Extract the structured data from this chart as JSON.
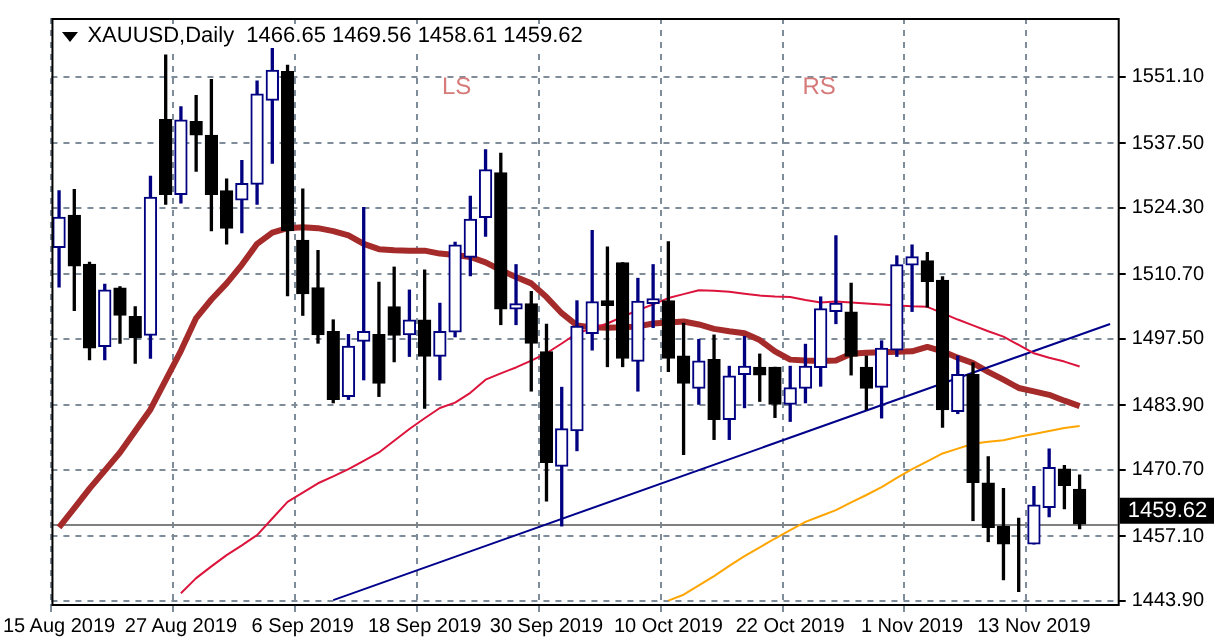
{
  "chart_data": {
    "type": "candlestick",
    "title": "XAUUSD,Daily  1466.65 1469.56 1458.61 1459.62",
    "categories": [
      "15 Aug 2019",
      null,
      null,
      null,
      null,
      null,
      null,
      null,
      "27 Aug 2019",
      null,
      null,
      null,
      null,
      null,
      null,
      null,
      "6 Sep 2019",
      null,
      null,
      null,
      null,
      null,
      null,
      null,
      "18 Sep 2019",
      null,
      null,
      null,
      null,
      null,
      null,
      null,
      "30 Sep 2019",
      null,
      null,
      null,
      null,
      null,
      null,
      null,
      "10 Oct 2019",
      null,
      null,
      null,
      null,
      null,
      null,
      null,
      "22 Oct 2019",
      null,
      null,
      null,
      null,
      null,
      null,
      null,
      "1 Nov 2019",
      null,
      null,
      null,
      null,
      null,
      null,
      null,
      "13 Nov 2019",
      null,
      null,
      null,
      null,
      null
    ],
    "ohlc": [
      [
        1516.2,
        1527.7,
        1508.1,
        1522.3
      ],
      [
        1522.7,
        1528.0,
        1503.3,
        1512.4
      ],
      [
        1512.7,
        1513.1,
        1493.2,
        1495.6
      ],
      [
        1495.9,
        1508.6,
        1493.2,
        1507.4
      ],
      [
        1507.8,
        1508.1,
        1496.6,
        1502.3
      ],
      [
        1502.0,
        1504.0,
        1492.5,
        1497.7
      ],
      [
        1498.2,
        1530.7,
        1493.5,
        1526.4
      ],
      [
        1542.3,
        1555.5,
        1525.0,
        1527.0
      ],
      [
        1527.0,
        1544.9,
        1525.3,
        1542.2
      ],
      [
        1541.9,
        1547.2,
        1531.8,
        1539.2
      ],
      [
        1539.1,
        1550.5,
        1519.6,
        1527.0
      ],
      [
        1527.7,
        1530.1,
        1516.9,
        1520.1
      ],
      [
        1525.9,
        1533.9,
        1519.2,
        1529.2
      ],
      [
        1529.1,
        1550.2,
        1525.0,
        1547.5
      ],
      [
        1546.3,
        1557.5,
        1533.4,
        1552.4
      ],
      [
        1552.1,
        1553.4,
        1506.3,
        1519.6
      ],
      [
        1517.6,
        1528.1,
        1502.3,
        1506.7
      ],
      [
        1507.9,
        1515.5,
        1496.6,
        1498.3
      ],
      [
        1498.9,
        1501.3,
        1484.4,
        1485.1
      ],
      [
        1485.7,
        1498.3,
        1485.1,
        1495.9
      ],
      [
        1497.0,
        1524.3,
        1489.1,
        1498.9
      ],
      [
        1498.3,
        1509.0,
        1485.7,
        1488.4
      ],
      [
        1504.0,
        1512.1,
        1492.8,
        1498.2
      ],
      [
        1498.3,
        1507.4,
        1493.9,
        1501.3
      ],
      [
        1501.3,
        1511.5,
        1483.3,
        1493.9
      ],
      [
        1493.9,
        1504.7,
        1489.1,
        1498.9
      ],
      [
        1498.9,
        1517.2,
        1497.9,
        1516.6
      ],
      [
        1514.2,
        1526.6,
        1510.4,
        1521.9
      ],
      [
        1522.3,
        1536.1,
        1518.5,
        1532.0
      ],
      [
        1531.4,
        1535.4,
        1500.4,
        1503.6
      ],
      [
        1503.6,
        1512.6,
        1500.4,
        1504.6
      ],
      [
        1504.6,
        1507.1,
        1486.8,
        1496.6
      ],
      [
        1494.8,
        1500.4,
        1464.3,
        1472.2
      ],
      [
        1471.4,
        1487.5,
        1459.2,
        1479.0
      ],
      [
        1478.7,
        1505.2,
        1474.6,
        1500.0
      ],
      [
        1498.6,
        1519.6,
        1495.2,
        1505.0
      ],
      [
        1505.2,
        1516.2,
        1491.8,
        1504.3
      ],
      [
        1513.0,
        1513.0,
        1491.8,
        1493.5
      ],
      [
        1492.9,
        1509.8,
        1486.8,
        1505.1
      ],
      [
        1504.7,
        1512.6,
        1499.8,
        1505.6
      ],
      [
        1505.2,
        1517.3,
        1490.8,
        1493.5
      ],
      [
        1493.9,
        1500.6,
        1473.8,
        1488.4
      ],
      [
        1487.4,
        1497.3,
        1484.1,
        1492.9
      ],
      [
        1493.2,
        1498.2,
        1476.9,
        1481.0
      ],
      [
        1481.0,
        1491.8,
        1476.9,
        1489.8
      ],
      [
        1490.2,
        1497.9,
        1483.4,
        1491.8
      ],
      [
        1491.6,
        1494.3,
        1484.7,
        1490.1
      ],
      [
        1491.6,
        1491.6,
        1481.4,
        1484.1
      ],
      [
        1484.1,
        1491.8,
        1480.6,
        1487.4
      ],
      [
        1487.4,
        1496.3,
        1484.4,
        1491.8
      ],
      [
        1491.6,
        1506.0,
        1487.8,
        1503.6
      ],
      [
        1503.1,
        1518.5,
        1500.6,
        1504.7
      ],
      [
        1502.9,
        1508.8,
        1490.1,
        1493.9
      ],
      [
        1491.6,
        1493.9,
        1483.0,
        1487.4
      ],
      [
        1487.6,
        1497.0,
        1481.3,
        1495.5
      ],
      [
        1495.2,
        1514.4,
        1493.9,
        1512.6
      ],
      [
        1512.6,
        1516.6,
        1503.1,
        1514.2
      ],
      [
        1513.4,
        1515.1,
        1504.0,
        1509.2
      ],
      [
        1509.4,
        1510.1,
        1479.4,
        1483.0
      ],
      [
        1482.6,
        1493.9,
        1482.2,
        1490.1
      ],
      [
        1490.1,
        1492.5,
        1460.3,
        1468.1
      ],
      [
        1467.9,
        1473.3,
        1456.0,
        1458.9
      ],
      [
        1459.1,
        1466.8,
        1448.2,
        1455.5
      ],
      [
        1456.0,
        1460.7,
        1445.8,
        1456.0
      ],
      [
        1455.5,
        1467.2,
        1455.5,
        1463.4
      ],
      [
        1463.0,
        1474.9,
        1461.1,
        1471.1
      ],
      [
        1470.8,
        1471.5,
        1462.7,
        1467.5
      ],
      [
        1466.65,
        1469.56,
        1458.61,
        1459.62
      ],
      null,
      null
    ],
    "colors": [
      "#000080",
      "#000000",
      "#000000",
      "#000080",
      "#000000",
      "#000000",
      "#000080",
      "#000000",
      "#000080",
      "#000000",
      "#000000",
      "#000000",
      "#000080",
      "#000080",
      "#000080",
      "#000000",
      "#000000",
      "#000000",
      "#000000",
      "#000080",
      "#000080",
      "#000000",
      "#000000",
      "#000080",
      "#000000",
      "#000080",
      "#000080",
      "#000080",
      "#000080",
      "#000000",
      "#000080",
      "#000000",
      "#000000",
      "#000080",
      "#000080",
      "#000080",
      "#000000",
      "#000000",
      "#000080",
      "#000080",
      "#000000",
      "#000000",
      "#000080",
      "#000000",
      "#000080",
      "#000080",
      "#000000",
      "#000000",
      "#000080",
      "#000080",
      "#000080",
      "#000080",
      "#000000",
      "#000000",
      "#000080",
      "#000080",
      "#000080",
      "#000000",
      "#000000",
      "#000080",
      "#000000",
      "#000000",
      "#000000",
      "#000000",
      "#000080",
      "#000080",
      "#000000",
      "#000000",
      null,
      null
    ],
    "series": [
      {
        "type": "line",
        "color": "#dc143c",
        "values": [
          null,
          null,
          null,
          null,
          null,
          null,
          null,
          null,
          1445.4,
          1448.5,
          1450.9,
          1453.2,
          1455.2,
          1457.3,
          1460.7,
          1464.1,
          1466.0,
          1467.9,
          1469.3,
          1470.8,
          1472.5,
          1474.2,
          1476.6,
          1479.0,
          1481.2,
          1483.3,
          1484.4,
          1486.4,
          1489.1,
          1490.4,
          1491.6,
          1493.0,
          1494.5,
          1496.5,
          1498.6,
          1499.6,
          1500.6,
          1502.0,
          1503.3,
          1504.5,
          1505.8,
          1506.6,
          1507.4,
          1507.3,
          1507.1,
          1506.7,
          1506.3,
          1506.1,
          1506.0,
          1505.4,
          1504.9,
          1505.1,
          1504.9,
          1504.7,
          1504.5,
          1504.3,
          1504.1,
          1504.0,
          1502.7,
          1501.4,
          1500.2,
          1499.0,
          1497.9,
          1496.2,
          1494.5,
          1493.6,
          1492.8,
          1491.8,
          null,
          null
        ]
      },
      {
        "type": "line",
        "color": "#ffa500",
        "values": [
          null,
          null,
          null,
          null,
          null,
          null,
          null,
          null,
          null,
          null,
          null,
          null,
          null,
          null,
          null,
          null,
          null,
          null,
          null,
          null,
          null,
          null,
          null,
          null,
          null,
          null,
          null,
          null,
          null,
          null,
          null,
          null,
          null,
          null,
          null,
          null,
          null,
          null,
          null,
          null,
          1443.9,
          1445.1,
          1447.0,
          1448.9,
          1451.0,
          1453.0,
          1454.8,
          1456.6,
          1458.3,
          1460.0,
          1461.2,
          1462.4,
          1464.0,
          1465.5,
          1467.1,
          1469.0,
          1470.8,
          1472.4,
          1474.0,
          1475.0,
          1476.0,
          1476.4,
          1476.7,
          1477.4,
          1478.0,
          1478.6,
          1479.2,
          1479.6,
          null,
          null
        ]
      },
      {
        "type": "line",
        "color": "#00008b",
        "values": [
          null,
          null,
          null,
          null,
          null,
          null,
          null,
          null,
          null,
          null,
          null,
          null,
          null,
          null,
          null,
          null,
          null,
          null,
          1444.0,
          null,
          null,
          null,
          null,
          null,
          null,
          null,
          null,
          null,
          null,
          null,
          null,
          null,
          null,
          null,
          null,
          null,
          null,
          null,
          null,
          null,
          null,
          null,
          null,
          null,
          null,
          null,
          null,
          null,
          null,
          null,
          null,
          null,
          null,
          null,
          null,
          null,
          null,
          null,
          null,
          null,
          null,
          null,
          null,
          null,
          null,
          null,
          null,
          null,
          null,
          1500.5
        ]
      },
      {
        "type": "line",
        "color": "#a52a2a",
        "values": [
          1458.9,
          1462.8,
          1466.8,
          1470.5,
          1474.2,
          1478.6,
          1483.0,
          1489.0,
          1495.0,
          1501.7,
          1505.5,
          1508.8,
          1512.6,
          1516.9,
          1519.2,
          1520.1,
          1520.3,
          1520.1,
          1519.5,
          1518.6,
          1516.9,
          1515.8,
          1515.6,
          1515.5,
          1515.5,
          1514.9,
          1514.6,
          1514.2,
          1513.1,
          1511.5,
          1510.1,
          1508.8,
          1506.0,
          1502.7,
          1500.2,
          1499.8,
          1499.7,
          1499.8,
          1500.0,
          1500.6,
          1500.8,
          1501.0,
          1500.4,
          1499.5,
          1499.0,
          1498.6,
          1497.2,
          1494.9,
          1493.2,
          1493.0,
          1492.9,
          1493.0,
          1494.4,
          1494.6,
          1494.7,
          1494.8,
          1494.9,
          1495.8,
          1494.9,
          1493.6,
          1492.5,
          1490.7,
          1489.1,
          1487.4,
          1486.7,
          1486.0,
          1484.8,
          1483.7,
          null,
          null
        ]
      }
    ],
    "ylim": [
      1443.2,
      1563.1
    ],
    "yticks": [
      {
        "value": 1443.9,
        "label": "1443.90"
      },
      {
        "value": 1457.1,
        "label": "1457.10"
      },
      {
        "value": 1470.7,
        "label": "1470.70"
      },
      {
        "value": 1483.9,
        "label": "1483.90"
      },
      {
        "value": 1497.5,
        "label": "1497.50"
      },
      {
        "value": 1510.7,
        "label": "1510.70"
      },
      {
        "value": 1524.3,
        "label": "1524.30"
      },
      {
        "value": 1537.5,
        "label": "1537.50"
      },
      {
        "value": 1551.1,
        "label": "1551.10"
      }
    ],
    "ref_lines": [
      {
        "axis": "y",
        "value": 1459.62,
        "label": "1459.62",
        "color": "#808080"
      }
    ],
    "annotations": [
      "LS",
      "RS"
    ],
    "grid": true
  }
}
